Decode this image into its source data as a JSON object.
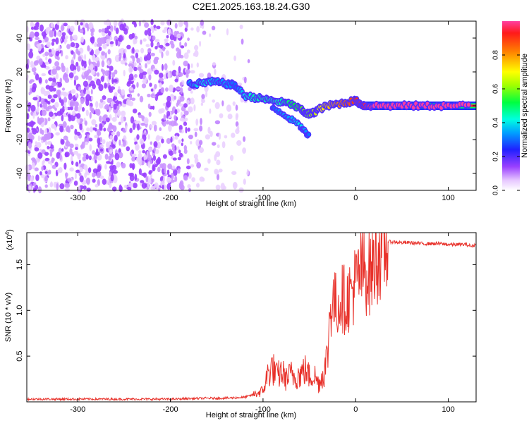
{
  "page_title": "C2E1.2025.163.18.24.G30",
  "colors": {
    "snr_line": "#e8312a",
    "ridge_high": "#ff2a2a",
    "background": "#ffffff"
  },
  "chart_data": [
    {
      "type": "heatmap",
      "xlabel": "Height of straight line (km)",
      "ylabel": "Frequency (Hz)",
      "xlim": [
        -355,
        130
      ],
      "ylim": [
        -50,
        50
      ],
      "x_ticks": [
        -300,
        -200,
        -100,
        0,
        100
      ],
      "y_ticks": [
        -40,
        -20,
        0,
        20,
        40
      ],
      "grid": false,
      "colorbar": {
        "label": "Normalized spectral amplitude",
        "range": [
          0,
          1
        ],
        "ticks": [
          0.0,
          0.2,
          0.4,
          0.6,
          0.8
        ],
        "tick_labels": [
          "0.0",
          "0.2",
          "0.4",
          "0.6",
          "0.8"
        ],
        "colormap": "rainbow"
      },
      "ridge": {
        "x": [
          -180,
          -170,
          -160,
          -150,
          -140,
          -130,
          -120,
          -110,
          -100,
          -90,
          -80,
          -70,
          -60,
          -55,
          -50,
          -45,
          -40,
          -30,
          -20,
          -10,
          0,
          5,
          10,
          20,
          40,
          60,
          80,
          100,
          125
        ],
        "frequency": [
          13,
          13,
          14,
          14,
          13,
          12,
          6,
          5,
          4,
          3,
          2,
          1,
          -2,
          -4,
          -5,
          -4,
          -2,
          0,
          1,
          2,
          3,
          1,
          0,
          0,
          0,
          0,
          0,
          0,
          0
        ],
        "amplitude": [
          0.35,
          0.4,
          0.4,
          0.35,
          0.35,
          0.3,
          0.4,
          0.45,
          0.45,
          0.45,
          0.45,
          0.5,
          0.55,
          0.6,
          0.6,
          0.65,
          0.7,
          0.75,
          0.8,
          0.85,
          0.9,
          0.9,
          0.95,
          1.0,
          1.0,
          1.0,
          1.0,
          1.0,
          1.0
        ]
      },
      "secondary_branch": {
        "x": [
          -90,
          -80,
          -70,
          -60,
          -55,
          -50
        ],
        "frequency": [
          -1,
          -4,
          -8,
          -12,
          -15,
          -18
        ],
        "amplitude": [
          0.3,
          0.35,
          0.35,
          0.4,
          0.35,
          0.3
        ]
      },
      "noise_region": {
        "x_range": [
          -355,
          -115
        ],
        "frequency_range": [
          -50,
          50
        ],
        "amplitude": 0.15
      }
    },
    {
      "type": "line",
      "xlabel": "Height of straight line (km)",
      "ylabel": "SNR (10 * v/v)",
      "y_scale_label": "(x10",
      "y_scale_exponent": "4",
      "xlim": [
        -355,
        130
      ],
      "ylim": [
        0,
        1.85
      ],
      "x_ticks": [
        -300,
        -200,
        -100,
        0,
        100
      ],
      "y_ticks": [
        0.5,
        1.0,
        1.5
      ],
      "y_tick_labels": [
        "0.5",
        "1.0",
        "1.5"
      ],
      "grid": false,
      "series": [
        {
          "x": [
            -355,
            -300,
            -250,
            -200,
            -160,
            -140,
            -120,
            -110,
            -100,
            -95,
            -90,
            -85,
            -80,
            -75,
            -70,
            -65,
            -60,
            -55,
            -50,
            -45,
            -40,
            -35,
            -30,
            -28,
            -25,
            -20,
            -15,
            -10,
            -5,
            0,
            5,
            10,
            15,
            20,
            25,
            30,
            35,
            40,
            50,
            60,
            70,
            80,
            90,
            100,
            110,
            120,
            125,
            130
          ],
          "y": [
            0.03,
            0.03,
            0.03,
            0.03,
            0.04,
            0.04,
            0.05,
            0.08,
            0.12,
            0.3,
            0.38,
            0.28,
            0.33,
            0.25,
            0.3,
            0.28,
            0.3,
            0.35,
            0.28,
            0.3,
            0.2,
            0.3,
            0.5,
            1.0,
            1.1,
            1.05,
            1.15,
            1.1,
            1.2,
            1.3,
            1.4,
            1.45,
            1.4,
            1.55,
            1.65,
            1.72,
            1.75,
            1.75,
            1.74,
            1.74,
            1.73,
            1.73,
            1.73,
            1.72,
            1.72,
            1.72,
            1.7,
            1.72
          ]
        }
      ]
    }
  ]
}
